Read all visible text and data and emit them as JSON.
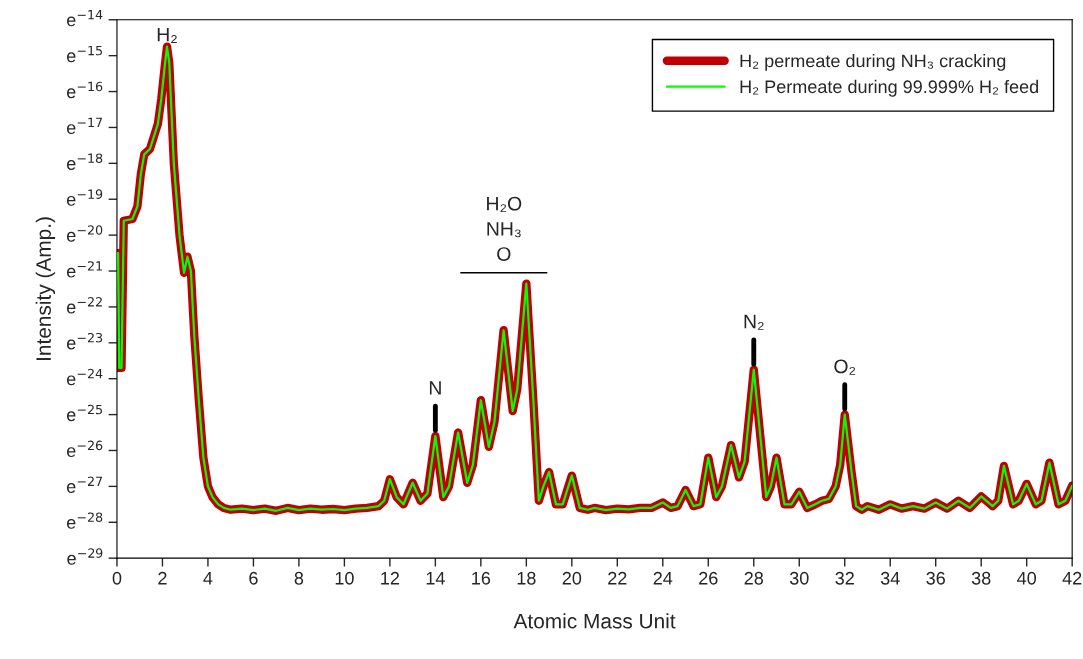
{
  "chart_data": {
    "type": "line",
    "xlabel": "Atomic Mass Unit",
    "ylabel": "Intensity (Amp.)",
    "x": [
      0,
      0.05,
      0.1,
      0.2,
      0.3,
      0.68,
      0.9,
      1.05,
      1.2,
      1.45,
      1.6,
      1.8,
      1.95,
      2.1,
      2.2,
      2.3,
      2.5,
      2.75,
      2.95,
      3.1,
      3.25,
      3.4,
      3.6,
      3.8,
      4.0,
      4.2,
      4.45,
      4.7,
      5,
      5.5,
      6,
      6.5,
      7,
      7.5,
      8,
      8.5,
      9,
      9.5,
      10,
      10.5,
      11,
      11.5,
      11.75,
      12,
      12.3,
      12.6,
      13,
      13.35,
      13.65,
      14,
      14.35,
      14.6,
      15,
      15.4,
      15.65,
      16,
      16.35,
      16.6,
      17,
      17.4,
      17.6,
      18,
      18.3,
      18.55,
      18.75,
      19,
      19.3,
      19.6,
      20,
      20.35,
      20.7,
      21,
      21.5,
      22,
      22.5,
      23,
      23.5,
      24,
      24.35,
      24.65,
      25,
      25.35,
      25.65,
      26,
      26.35,
      26.6,
      27,
      27.35,
      27.6,
      28,
      28.35,
      28.55,
      28.75,
      29,
      29.35,
      29.65,
      30,
      30.35,
      30.7,
      31,
      31.3,
      31.6,
      31.8,
      32,
      32.3,
      32.5,
      32.75,
      33,
      33.5,
      34,
      34.5,
      35,
      35.5,
      36,
      36.5,
      37,
      37.5,
      38,
      38.5,
      38.75,
      39,
      39.4,
      39.65,
      40,
      40.4,
      40.65,
      41,
      41.4,
      41.7,
      42
    ],
    "series": [
      {
        "name": "H₂ permeate during NH₃ cracking",
        "color": "#c00000",
        "values": [
          -20.5,
          -20.5,
          -23.7,
          -23.7,
          -19.6,
          -19.55,
          -19.2,
          -18.3,
          -17.75,
          -17.6,
          -17.3,
          -16.9,
          -16.2,
          -15.3,
          -14.75,
          -15.2,
          -18.0,
          -20.0,
          -21.05,
          -20.6,
          -21.0,
          -22.8,
          -24.6,
          -26.2,
          -27.0,
          -27.3,
          -27.5,
          -27.6,
          -27.65,
          -27.62,
          -27.66,
          -27.62,
          -27.68,
          -27.6,
          -27.66,
          -27.62,
          -27.65,
          -27.63,
          -27.66,
          -27.62,
          -27.6,
          -27.55,
          -27.4,
          -26.8,
          -27.3,
          -27.5,
          -26.9,
          -27.4,
          -27.2,
          -25.6,
          -27.3,
          -27.0,
          -25.5,
          -26.9,
          -26.4,
          -24.6,
          -25.9,
          -25.2,
          -22.65,
          -24.9,
          -24.3,
          -21.35,
          -24.5,
          -27.4,
          -27.0,
          -26.6,
          -27.5,
          -27.5,
          -26.7,
          -27.6,
          -27.65,
          -27.6,
          -27.66,
          -27.62,
          -27.64,
          -27.6,
          -27.6,
          -27.45,
          -27.6,
          -27.55,
          -27.1,
          -27.55,
          -27.5,
          -26.2,
          -27.3,
          -27.0,
          -25.85,
          -26.75,
          -26.3,
          -23.75,
          -26.0,
          -27.3,
          -27.0,
          -26.2,
          -27.5,
          -27.5,
          -27.15,
          -27.6,
          -27.5,
          -27.4,
          -27.35,
          -27.0,
          -26.4,
          -25.0,
          -26.6,
          -27.55,
          -27.65,
          -27.55,
          -27.65,
          -27.5,
          -27.62,
          -27.55,
          -27.62,
          -27.45,
          -27.62,
          -27.4,
          -27.6,
          -27.28,
          -27.55,
          -27.4,
          -26.43,
          -27.5,
          -27.4,
          -26.93,
          -27.5,
          -27.4,
          -26.34,
          -27.5,
          -27.4,
          -26.98
        ]
      },
      {
        "name": "H₂ Permeate during 99.999% H₂ feed",
        "color": "#00ff00",
        "values": [
          -20.5,
          -20.5,
          -23.7,
          -23.7,
          -19.6,
          -19.55,
          -19.2,
          -18.3,
          -17.75,
          -17.6,
          -17.3,
          -16.9,
          -16.2,
          -15.3,
          -14.75,
          -15.2,
          -18.0,
          -20.0,
          -21.05,
          -20.6,
          -21.0,
          -22.8,
          -24.6,
          -26.2,
          -27.0,
          -27.3,
          -27.5,
          -27.6,
          -27.65,
          -27.62,
          -27.66,
          -27.62,
          -27.68,
          -27.6,
          -27.66,
          -27.62,
          -27.65,
          -27.63,
          -27.66,
          -27.62,
          -27.6,
          -27.55,
          -27.4,
          -26.8,
          -27.3,
          -27.5,
          -26.9,
          -27.4,
          -27.2,
          -25.6,
          -27.3,
          -27.0,
          -25.5,
          -26.9,
          -26.4,
          -24.6,
          -25.9,
          -25.2,
          -22.65,
          -24.9,
          -24.3,
          -21.35,
          -24.5,
          -27.4,
          -27.0,
          -26.6,
          -27.5,
          -27.5,
          -26.7,
          -27.6,
          -27.65,
          -27.6,
          -27.66,
          -27.62,
          -27.64,
          -27.6,
          -27.6,
          -27.45,
          -27.6,
          -27.55,
          -27.1,
          -27.55,
          -27.5,
          -26.2,
          -27.3,
          -27.0,
          -25.85,
          -26.75,
          -26.3,
          -23.75,
          -26.0,
          -27.3,
          -27.0,
          -26.2,
          -27.5,
          -27.5,
          -27.15,
          -27.6,
          -27.5,
          -27.4,
          -27.35,
          -27.0,
          -26.4,
          -25.0,
          -26.6,
          -27.55,
          -27.65,
          -27.55,
          -27.65,
          -27.5,
          -27.62,
          -27.55,
          -27.62,
          -27.45,
          -27.62,
          -27.4,
          -27.6,
          -27.28,
          -27.55,
          -27.4,
          -26.43,
          -27.5,
          -27.4,
          -26.93,
          -27.5,
          -27.4,
          -26.34,
          -27.5,
          -27.4,
          -26.98
        ]
      }
    ],
    "xlim": [
      0,
      42
    ],
    "xticks": [
      0,
      2,
      4,
      6,
      8,
      10,
      12,
      14,
      16,
      18,
      20,
      22,
      24,
      26,
      28,
      30,
      32,
      34,
      36,
      38,
      40,
      42
    ],
    "ylim": [
      -29,
      -14
    ],
    "yticks": [
      {
        "value": -14,
        "label": "e$^{−14}$"
      },
      {
        "value": -15,
        "label": "e$^{−15}$"
      },
      {
        "value": -16,
        "label": "e$^{−16}$"
      },
      {
        "value": -17,
        "label": "e$^{−17}$"
      },
      {
        "value": -18,
        "label": "e$^{−18}$"
      },
      {
        "value": -19,
        "label": "e$^{−19}$"
      },
      {
        "value": -20,
        "label": "e$^{−20}$"
      },
      {
        "value": -21,
        "label": "e$^{−21}$"
      },
      {
        "value": -22,
        "label": "e$^{−22}$"
      },
      {
        "value": -23,
        "label": "e$^{−23}$"
      },
      {
        "value": -24,
        "label": "e$^{−24}$"
      },
      {
        "value": -25,
        "label": "e$^{−25}$"
      },
      {
        "value": -26,
        "label": "e$^{−26}$"
      },
      {
        "value": -27,
        "label": "e$^{−27}$"
      },
      {
        "value": -28,
        "label": "e$^{−28}$"
      },
      {
        "value": -29,
        "label": "e$^{−29}$"
      }
    ],
    "annotations": [
      {
        "text": "H₂",
        "x": 2.2,
        "y": -14.75
      },
      {
        "text": "N",
        "x": 14,
        "y": -25.6
      },
      "H₂O\nNH₃\nO",
      {
        "text": "N₂",
        "x": 28,
        "y": -23.75
      },
      {
        "text": "O₂",
        "x": 32,
        "y": -25.0
      }
    ],
    "legend": "top right",
    "grid": false,
    "marker": "none",
    "line_style": "solid"
  }
}
